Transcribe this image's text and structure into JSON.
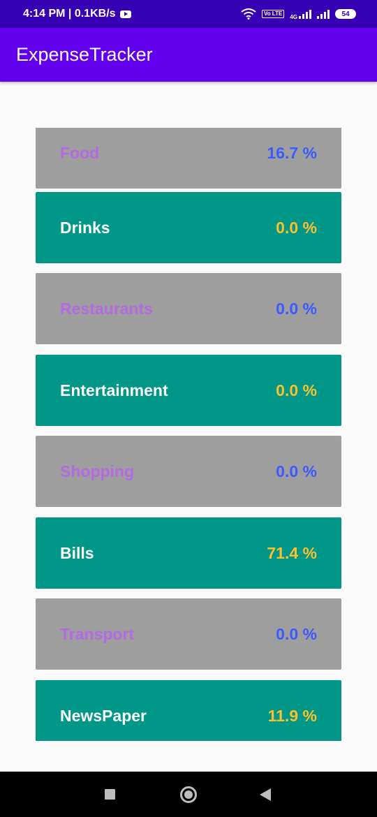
{
  "status_bar": {
    "time_speed": "4:14 PM | 0.1KB/s",
    "network_tag": "4G",
    "volte": "Vo LTE",
    "battery": "54"
  },
  "app_bar": {
    "title": "ExpenseTracker"
  },
  "categories": [
    {
      "name": "Food",
      "percent": "16.7 %"
    },
    {
      "name": "Drinks",
      "percent": "0.0 %"
    },
    {
      "name": "Restaurants",
      "percent": "0.0 %"
    },
    {
      "name": "Entertainment",
      "percent": "0.0 %"
    },
    {
      "name": "Shopping",
      "percent": "0.0 %"
    },
    {
      "name": "Bills",
      "percent": "71.4 %"
    },
    {
      "name": "Transport",
      "percent": "0.0 %"
    },
    {
      "name": "NewsPaper",
      "percent": "11.9 %"
    }
  ],
  "colors": {
    "status_bar": "#3700b3",
    "app_bar": "#6200ee",
    "row_gray": "#9e9e9e",
    "row_teal": "#009688",
    "gray_label": "#b36ae2",
    "gray_percent": "#3d5afe",
    "teal_label": "#ffffff",
    "teal_percent": "#fbc02d"
  },
  "nav_bar": {
    "icons": [
      "recents-icon",
      "home-icon",
      "back-icon"
    ]
  }
}
